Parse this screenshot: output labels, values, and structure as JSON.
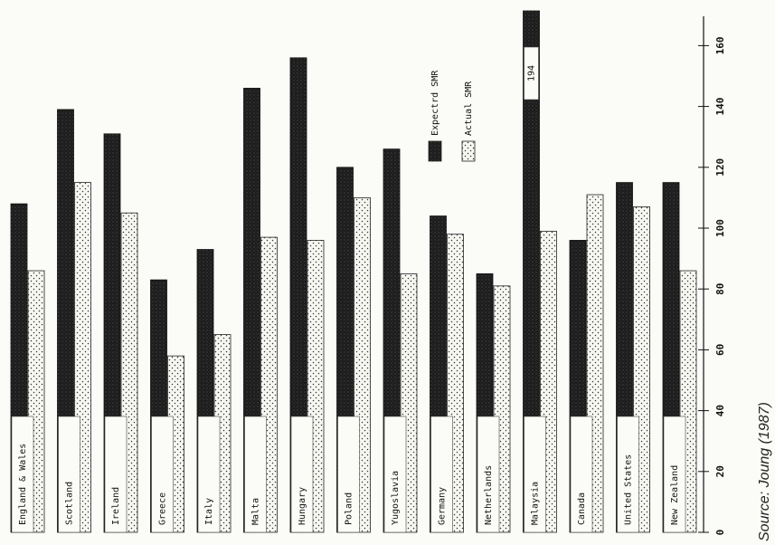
{
  "chart_data": {
    "type": "bar",
    "orientation": "vertical bars, page rotated 90 degrees clockwise",
    "categories": [
      "England & Wales",
      "Scotland",
      "Ireland",
      "Greece",
      "Italy",
      "Malta",
      "Hungary",
      "Poland",
      "Yugoslavia",
      "Germany",
      "Netherlands",
      "Malaysia",
      "Canada",
      "United States",
      "New Zealand"
    ],
    "series": [
      {
        "name": "Expectrd SMR",
        "pattern": "dark",
        "values": [
          108,
          139,
          131,
          83,
          93,
          146,
          156,
          120,
          126,
          104,
          85,
          194,
          96,
          115,
          115
        ]
      },
      {
        "name": "Actual SMR",
        "pattern": "dotted",
        "values": [
          86,
          115,
          105,
          58,
          65,
          97,
          96,
          110,
          85,
          98,
          81,
          99,
          111,
          107,
          86
        ]
      }
    ],
    "axis": {
      "ticks": [
        0,
        20,
        40,
        60,
        80,
        100,
        120,
        140,
        160
      ],
      "range": [
        0,
        170
      ]
    },
    "annotations": [
      {
        "text": "194",
        "category": "Malaysia",
        "series": "Expectrd SMR"
      }
    ],
    "legend_placement": "upper middle",
    "source": "Source: Joung (1987)"
  }
}
